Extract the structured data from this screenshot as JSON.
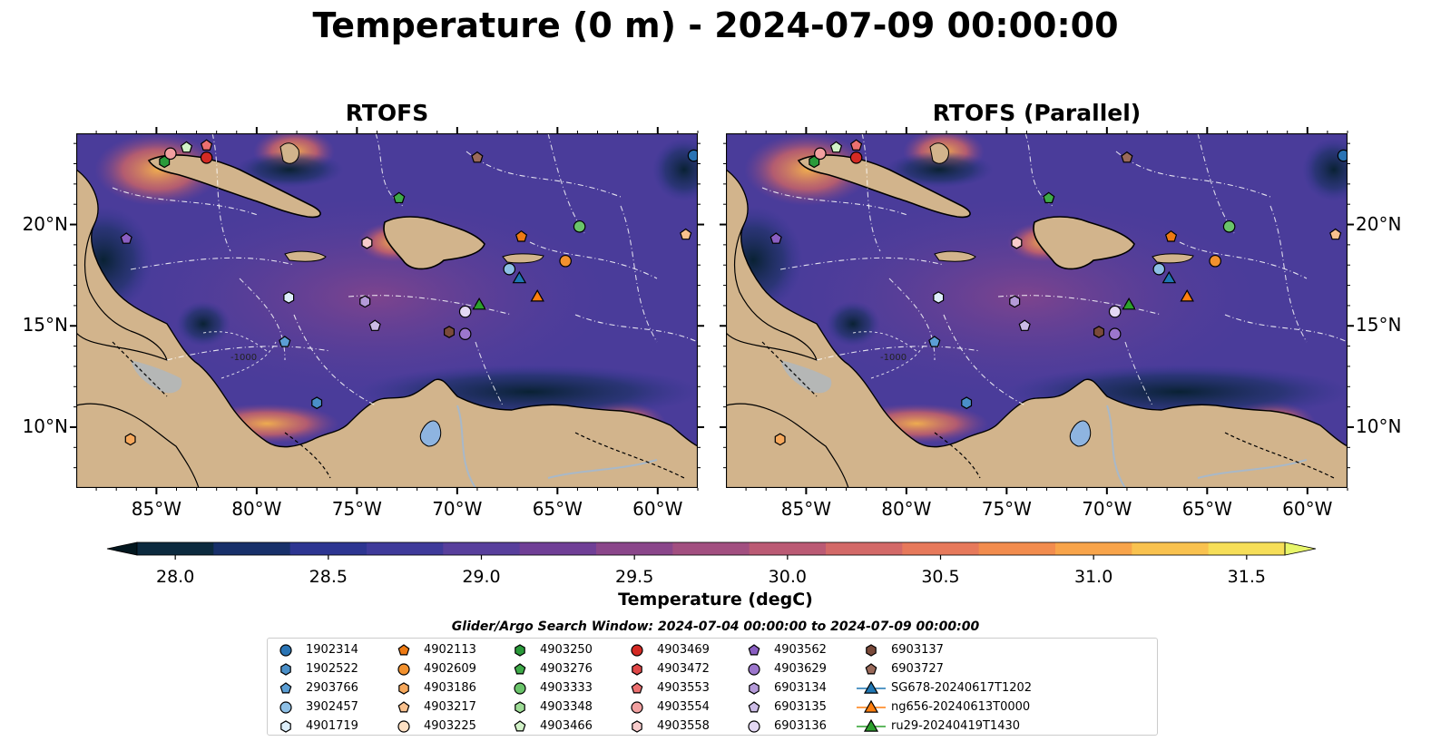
{
  "title": "Temperature (0 m) - 2024-07-09 00:00:00",
  "panels": [
    {
      "title": "RTOFS",
      "left": 84,
      "top": 147,
      "width": 685,
      "height": 391,
      "ticks_left": true,
      "ticks_right": false
    },
    {
      "title": "RTOFS (Parallel)",
      "left": 800,
      "top": 147,
      "width": 685,
      "height": 391,
      "ticks_left": false,
      "ticks_right": true
    }
  ],
  "map_extent": {
    "lon": [
      -89,
      -58
    ],
    "lat": [
      7,
      24.5
    ]
  },
  "lon_ticks": [
    {
      "value": -85,
      "label": "85°W"
    },
    {
      "value": -80,
      "label": "80°W"
    },
    {
      "value": -75,
      "label": "75°W"
    },
    {
      "value": -70,
      "label": "70°W"
    },
    {
      "value": -65,
      "label": "65°W"
    },
    {
      "value": -60,
      "label": "60°W"
    }
  ],
  "lat_ticks": [
    {
      "value": 20,
      "label": "20°N"
    },
    {
      "value": 15,
      "label": "15°N"
    },
    {
      "value": 10,
      "label": "10°N"
    }
  ],
  "colorbar": {
    "label": "Temperature (degC)",
    "min": 28.0,
    "max": 31.5,
    "step": 0.25,
    "ticks": [
      {
        "value": 28.0,
        "label": "28.0"
      },
      {
        "value": 28.5,
        "label": "28.5"
      },
      {
        "value": 29.0,
        "label": "29.0"
      },
      {
        "value": 29.5,
        "label": "29.5"
      },
      {
        "value": 30.0,
        "label": "30.0"
      },
      {
        "value": 30.5,
        "label": "30.5"
      },
      {
        "value": 31.0,
        "label": "31.0"
      },
      {
        "value": 31.5,
        "label": "31.5"
      }
    ],
    "colors": [
      "#0c2a3f",
      "#18306a",
      "#2d3591",
      "#3f3a9a",
      "#583f9c",
      "#703f96",
      "#8a468a",
      "#a24f80",
      "#bb5a74",
      "#d36968",
      "#e7795b",
      "#f28c4e",
      "#f8a44a",
      "#f9c24f",
      "#f6de58"
    ],
    "under_color": "#03171f",
    "over_color": "#e8f66a"
  },
  "search_window": "Glider/Argo Search Window: 2024-07-04 00:00:00 to 2024-07-09 00:00:00",
  "contour_labels": [
    "-1000",
    "-1000"
  ],
  "legend_items": [
    {
      "label": "1902314",
      "shape": "circle",
      "color": "#2a74b4"
    },
    {
      "label": "1902522",
      "shape": "hexagon",
      "color": "#4a8fc8"
    },
    {
      "label": "2903766",
      "shape": "pentagon",
      "color": "#5b9ed4"
    },
    {
      "label": "3902457",
      "shape": "circle",
      "color": "#8ec0e6"
    },
    {
      "label": "4901719",
      "shape": "hexagon",
      "color": "#ddeefa"
    },
    {
      "label": "4902113",
      "shape": "pentagon",
      "color": "#ee7a12"
    },
    {
      "label": "4902609",
      "shape": "circle",
      "color": "#f2912e"
    },
    {
      "label": "4903186",
      "shape": "hexagon",
      "color": "#f6a85c"
    },
    {
      "label": "4903217",
      "shape": "pentagon",
      "color": "#f9c18e"
    },
    {
      "label": "4903225",
      "shape": "circle",
      "color": "#fde0c4"
    },
    {
      "label": "4903250",
      "shape": "hexagon",
      "color": "#2a9a3a"
    },
    {
      "label": "4903276",
      "shape": "pentagon",
      "color": "#3eaa48"
    },
    {
      "label": "4903333",
      "shape": "circle",
      "color": "#6ac46a"
    },
    {
      "label": "4903348",
      "shape": "hexagon",
      "color": "#9edc96"
    },
    {
      "label": "4903466",
      "shape": "pentagon",
      "color": "#d2f2c8"
    },
    {
      "label": "4903469",
      "shape": "circle",
      "color": "#d42a24"
    },
    {
      "label": "4903472",
      "shape": "hexagon",
      "color": "#e04848"
    },
    {
      "label": "4903553",
      "shape": "pentagon",
      "color": "#ec7070"
    },
    {
      "label": "4903554",
      "shape": "circle",
      "color": "#f2a0a0"
    },
    {
      "label": "4903558",
      "shape": "hexagon",
      "color": "#f8cccc"
    },
    {
      "label": "4903562",
      "shape": "pentagon",
      "color": "#8a5ec2"
    },
    {
      "label": "4903629",
      "shape": "circle",
      "color": "#9c76cc"
    },
    {
      "label": "6903134",
      "shape": "hexagon",
      "color": "#b49ad8"
    },
    {
      "label": "6903135",
      "shape": "pentagon",
      "color": "#ccbce6"
    },
    {
      "label": "6903136",
      "shape": "circle",
      "color": "#e4d8f4"
    },
    {
      "label": "6903137",
      "shape": "hexagon",
      "color": "#7a4a3a"
    },
    {
      "label": "6903727",
      "shape": "pentagon",
      "color": "#9a6a5a"
    },
    {
      "label": "SG678-20240617T1202",
      "shape": "triangle-line",
      "color": "#1f77b4"
    },
    {
      "label": "ng656-20240613T0000",
      "shape": "triangle-line",
      "color": "#ff7f0e"
    },
    {
      "label": "ru29-20240419T1430",
      "shape": "triangle-line",
      "color": "#2ca02c"
    }
  ],
  "markers": [
    {
      "id": "1902314",
      "lon": -58.2,
      "lat": 23.4
    },
    {
      "id": "4903250",
      "lon": -84.6,
      "lat": 23.1
    },
    {
      "id": "4903554",
      "lon": -84.3,
      "lat": 23.5
    },
    {
      "id": "4903466",
      "lon": -83.5,
      "lat": 23.8
    },
    {
      "id": "4903553",
      "lon": -82.5,
      "lat": 23.9
    },
    {
      "id": "4903469",
      "lon": -82.5,
      "lat": 23.3
    },
    {
      "id": "6903727",
      "lon": -69.0,
      "lat": 23.3
    },
    {
      "id": "4903276",
      "lon": -72.9,
      "lat": 21.3
    },
    {
      "id": "4903333",
      "lon": -63.9,
      "lat": 19.9
    },
    {
      "id": "4903217",
      "lon": -58.6,
      "lat": 19.5
    },
    {
      "id": "4902113",
      "lon": -66.8,
      "lat": 19.4
    },
    {
      "id": "4903562",
      "lon": -86.5,
      "lat": 19.3
    },
    {
      "id": "4903558",
      "lon": -74.5,
      "lat": 19.1
    },
    {
      "id": "3902457",
      "lon": -67.4,
      "lat": 17.8
    },
    {
      "id": "4902609",
      "lon": -64.6,
      "lat": 18.2
    },
    {
      "id": "SG678-20240617T1202",
      "lon": -66.9,
      "lat": 17.3
    },
    {
      "id": "ng656-20240613T0000",
      "lon": -66.0,
      "lat": 16.4
    },
    {
      "id": "ru29-20240419T1430",
      "lon": -68.9,
      "lat": 16.0
    },
    {
      "id": "4901719",
      "lon": -78.4,
      "lat": 16.4
    },
    {
      "id": "6903134",
      "lon": -74.6,
      "lat": 16.2
    },
    {
      "id": "6903136",
      "lon": -69.6,
      "lat": 15.7
    },
    {
      "id": "6903135",
      "lon": -74.1,
      "lat": 15.0
    },
    {
      "id": "6903137",
      "lon": -70.4,
      "lat": 14.7
    },
    {
      "id": "4903629",
      "lon": -69.6,
      "lat": 14.6
    },
    {
      "id": "2903766",
      "lon": -78.6,
      "lat": 14.2
    },
    {
      "id": "1902522",
      "lon": -77.0,
      "lat": 11.2
    },
    {
      "id": "4903186",
      "lon": -86.3,
      "lat": 9.4
    }
  ]
}
